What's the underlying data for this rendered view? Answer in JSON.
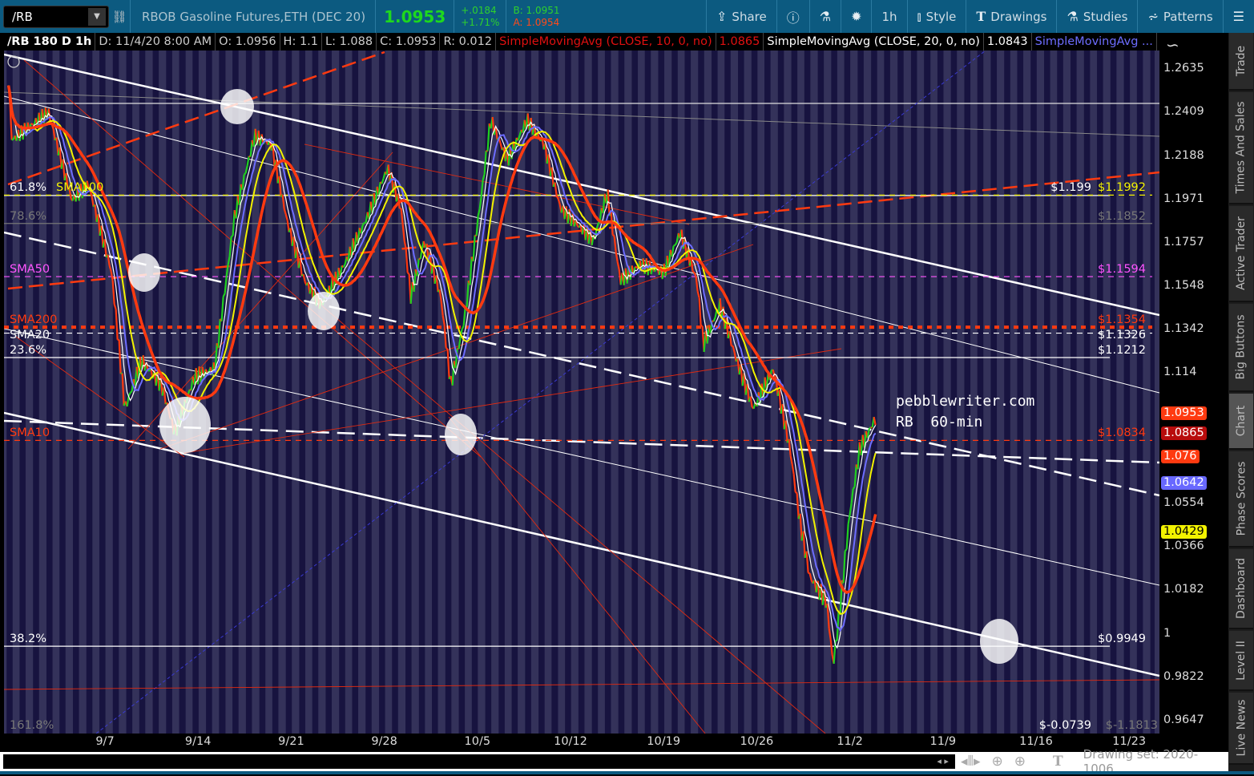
{
  "toolbar": {
    "symbol": "/RB",
    "description": "RBOB Gasoline Futures,ETH (DEC 20)",
    "last": "1.0953",
    "change": "+.0184",
    "change_pct": "+1.71%",
    "bid": "B: 1.0951",
    "ask": "A: 1.0954",
    "buttons": [
      {
        "label": "Share",
        "icon": "share-icon"
      },
      {
        "label": "",
        "icon": "info-icon"
      },
      {
        "label": "",
        "icon": "flask-icon"
      },
      {
        "label": "",
        "icon": "gear-icon"
      },
      {
        "label": "1h",
        "icon": ""
      },
      {
        "label": "Style",
        "icon": "candle-icon"
      },
      {
        "label": "Drawings",
        "icon": "text-t-icon"
      },
      {
        "label": "Studies",
        "icon": "flask-icon"
      },
      {
        "label": "Patterns",
        "icon": "patterns-icon"
      },
      {
        "label": "",
        "icon": "menu-icon"
      }
    ]
  },
  "header": {
    "title": "/RB 180 D 1h",
    "date": "D: 11/4/20 8:00 AM",
    "open": "O: 1.0956",
    "high": "H: 1.1",
    "low": "L: 1.088",
    "close": "C: 1.0953",
    "range": "R: 0.012",
    "studies": [
      {
        "label": "SimpleMovingAvg (CLOSE, 10, 0, no)",
        "value": "1.0865",
        "color": "#e01010"
      },
      {
        "label": "SimpleMovingAvg (CLOSE, 20, 0, no)",
        "value": "1.0843",
        "color": "#ffffff"
      },
      {
        "label": "SimpleMovingAvg ...",
        "value": "",
        "color": "#6d6dff"
      }
    ]
  },
  "price_axis": {
    "scale": "log",
    "ticks": [
      "1.2635",
      "1.2409",
      "1.2188",
      "1.1971",
      "1.1757",
      "1.1548",
      "1.1342",
      "1.114",
      "1.0554",
      "1.0366",
      "1.0182",
      "1",
      "0.9822",
      "0.9647"
    ]
  },
  "price_tags": [
    {
      "value": "1.0953",
      "color": "#ff3a10"
    },
    {
      "value": "1.0865",
      "color": "#b80c0c"
    },
    {
      "value": "1.076",
      "color": "#ff3a10"
    },
    {
      "value": "1.0642",
      "color": "#6868ff"
    },
    {
      "value": "1.0429",
      "color": "#f2f200"
    }
  ],
  "date_axis": {
    "ticks": [
      "9/7",
      "9/14",
      "9/21",
      "9/28",
      "10/5",
      "10/12",
      "10/19",
      "10/26",
      "11/2",
      "11/9",
      "11/16",
      "11/23"
    ]
  },
  "levels": [
    {
      "left": "61.8%",
      "right": "$1.199",
      "price": 1.199,
      "color": "#ffffff",
      "style": "solid"
    },
    {
      "left": "SMA100",
      "right": "$1.1992",
      "price": 1.1992,
      "color": "#f2f200",
      "style": "dash"
    },
    {
      "left": "78.6%",
      "right": "$1.1852",
      "price": 1.1852,
      "color": "#777777",
      "style": "solid"
    },
    {
      "left": "SMA50",
      "right": "$1.1594",
      "price": 1.1594,
      "color": "#ff55ff",
      "style": "dash"
    },
    {
      "left": "SMA200",
      "right": "$1.1354",
      "price": 1.1354,
      "color": "#ff3a10",
      "style": "dot"
    },
    {
      "left": "SMA20",
      "right": "$1.1326",
      "price": 1.1326,
      "color": "#ffffff",
      "style": "dash"
    },
    {
      "left": "23.6%",
      "right": "$1.1212",
      "price": 1.1212,
      "color": "#ffffff",
      "style": "solid"
    },
    {
      "left": "SMA10",
      "right": "$1.0834",
      "price": 1.0834,
      "color": "#ff3a10",
      "style": "dash"
    },
    {
      "left": "38.2%",
      "right": "$0.9949",
      "price": 0.9949,
      "color": "#ffffff",
      "style": "solid"
    },
    {
      "left": "161.8%",
      "right": "$-0.0739",
      "price": null,
      "color": "#777777",
      "style": "none"
    }
  ],
  "extra_level_label": "$-1.1813",
  "annotation": {
    "line1": "pebblewriter.com",
    "line2": "RB  60-min"
  },
  "chart_data": {
    "type": "line",
    "yscale": "log",
    "ylim": [
      0.9647,
      1.2635
    ],
    "xlim": [
      "2020-08-30",
      "2020-11-26"
    ],
    "series": [
      {
        "values": [
          [
            "2020-08-30T18:00",
            1.2576
          ],
          [
            "2020-08-31T00:00",
            1.2267
          ],
          [
            "2020-09-02T18:00",
            1.2411
          ],
          [
            "2020-09-04T12:00",
            1.1966
          ],
          [
            "2020-09-05T18:00",
            1.2045
          ],
          [
            "2020-09-07T12:00",
            1.1614
          ],
          [
            "2020-09-08T12:00",
            1.0976
          ],
          [
            "2020-09-09T18:00",
            1.1197
          ],
          [
            "2020-09-11T06:00",
            1.1086
          ],
          [
            "2020-09-12T06:00",
            1.0868
          ],
          [
            "2020-09-13T18:00",
            1.1123
          ],
          [
            "2020-09-15T06:00",
            1.116
          ],
          [
            "2020-09-16T18:00",
            1.1887
          ],
          [
            "2020-09-18T06:00",
            1.2288
          ],
          [
            "2020-09-19T12:00",
            1.2247
          ],
          [
            "2020-09-20T18:00",
            1.1847
          ],
          [
            "2020-09-22T00:00",
            1.1575
          ],
          [
            "2020-09-23T06:00",
            1.146
          ],
          [
            "2020-09-25T00:00",
            1.1652
          ],
          [
            "2020-09-26T18:00",
            1.1887
          ],
          [
            "2020-09-28T06:00",
            1.2126
          ],
          [
            "2020-09-29T06:00",
            1.1926
          ],
          [
            "2020-09-30T00:00",
            1.1498
          ],
          [
            "2020-10-01T00:00",
            1.1769
          ],
          [
            "2020-10-02T06:00",
            1.1498
          ],
          [
            "2020-10-03T00:00",
            1.1086
          ],
          [
            "2020-10-04T00:00",
            1.1385
          ],
          [
            "2020-10-05T06:00",
            1.1966
          ],
          [
            "2020-10-06T00:00",
            1.237
          ],
          [
            "2020-10-07T06:00",
            1.2166
          ],
          [
            "2020-10-08T18:00",
            1.237
          ],
          [
            "2020-10-10T00:00",
            1.2247
          ],
          [
            "2020-10-11T06:00",
            1.1926
          ],
          [
            "2020-10-12T12:00",
            1.1847
          ],
          [
            "2020-10-13T18:00",
            1.1769
          ],
          [
            "2020-10-14T18:00",
            1.2005
          ],
          [
            "2020-10-15T18:00",
            1.1575
          ],
          [
            "2020-10-17T06:00",
            1.1652
          ],
          [
            "2020-10-19T00:00",
            1.1614
          ],
          [
            "2020-10-20T06:00",
            1.1808
          ],
          [
            "2020-10-21T12:00",
            1.1575
          ],
          [
            "2020-10-22T00:00",
            1.1272
          ],
          [
            "2020-10-23T06:00",
            1.146
          ],
          [
            "2020-10-24T12:00",
            1.1197
          ],
          [
            "2020-10-25T18:00",
            1.0976
          ],
          [
            "2020-10-27T06:00",
            1.116
          ],
          [
            "2020-10-28T12:00",
            1.0796
          ],
          [
            "2020-10-29T06:00",
            1.0478
          ],
          [
            "2020-10-30T00:00",
            1.0237
          ],
          [
            "2020-10-31T06:00",
            1.0136
          ],
          [
            "2020-10-31T18:00",
            0.987
          ],
          [
            "2020-11-01T06:00",
            1.0102
          ],
          [
            "2020-11-02T00:00",
            1.0513
          ],
          [
            "2020-11-02T18:00",
            1.0796
          ],
          [
            "2020-11-04T00:00",
            1.094
          ]
        ]
      }
    ]
  },
  "bottom": {
    "drawing_set": "Drawing set: 2020-1006"
  },
  "side_tabs": [
    "Trade",
    "Times And Sales",
    "Active Trader",
    "Big Buttons",
    "Chart",
    "Phase Scores",
    "Dashboard",
    "Level II",
    "Live News"
  ],
  "active_side_tab": "Chart"
}
